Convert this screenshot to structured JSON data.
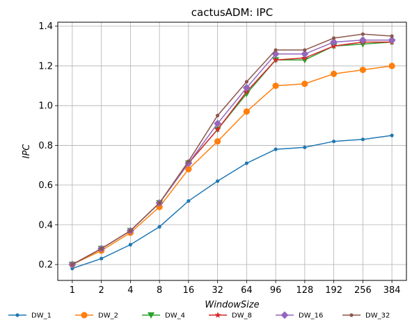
{
  "chart_data": {
    "type": "line",
    "title": "cactusADM: IPC",
    "xlabel": "WindowSize",
    "ylabel": "IPC",
    "categories": [
      "1",
      "2",
      "4",
      "8",
      "16",
      "32",
      "64",
      "96",
      "128",
      "192",
      "256",
      "384"
    ],
    "ylim": [
      0.12,
      1.42
    ],
    "yticks": [
      "0.2",
      "0.4",
      "0.6",
      "0.8",
      "1.0",
      "1.2",
      "1.4"
    ],
    "grid": true,
    "legend_position": "bottom",
    "series": [
      {
        "name": "DW_1",
        "color": "#1f77b4",
        "marker": "point",
        "values": [
          0.18,
          0.23,
          0.3,
          0.39,
          0.52,
          0.62,
          0.71,
          0.78,
          0.79,
          0.82,
          0.83,
          0.85
        ]
      },
      {
        "name": "DW_2",
        "color": "#ff7f0e",
        "marker": "circle",
        "values": [
          0.2,
          0.27,
          0.36,
          0.49,
          0.68,
          0.82,
          0.97,
          1.1,
          1.11,
          1.16,
          1.18,
          1.2
        ]
      },
      {
        "name": "DW_4",
        "color": "#2ca02c",
        "marker": "triangle-down",
        "values": [
          0.2,
          0.28,
          0.37,
          0.51,
          0.71,
          0.88,
          1.06,
          1.23,
          1.23,
          1.3,
          1.31,
          1.32
        ]
      },
      {
        "name": "DW_8",
        "color": "#d62728",
        "marker": "star",
        "values": [
          0.2,
          0.28,
          0.37,
          0.51,
          0.71,
          0.88,
          1.07,
          1.23,
          1.24,
          1.3,
          1.32,
          1.32
        ]
      },
      {
        "name": "DW_16",
        "color": "#9467bd",
        "marker": "diamond",
        "values": [
          0.2,
          0.28,
          0.37,
          0.51,
          0.71,
          0.91,
          1.09,
          1.26,
          1.26,
          1.32,
          1.33,
          1.33
        ]
      },
      {
        "name": "DW_32",
        "color": "#8c564b",
        "marker": "point",
        "values": [
          0.2,
          0.28,
          0.37,
          0.51,
          0.72,
          0.95,
          1.12,
          1.28,
          1.28,
          1.34,
          1.36,
          1.35
        ]
      }
    ]
  }
}
